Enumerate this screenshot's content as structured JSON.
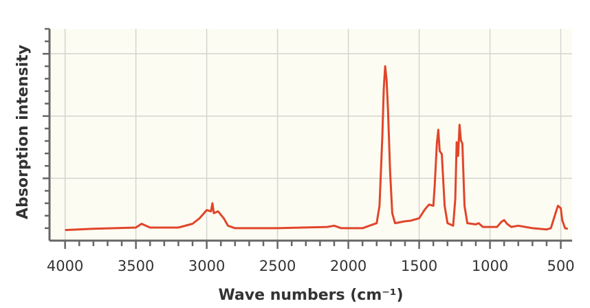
{
  "chart_data": {
    "type": "line",
    "x_label": "Wave numbers (cm⁻¹)",
    "y_label": "Absorption intensity",
    "x": [
      4000,
      3800,
      3500,
      3460,
      3400,
      3200,
      3100,
      3050,
      3000,
      2970,
      2960,
      2950,
      2920,
      2880,
      2850,
      2800,
      2500,
      2150,
      2100,
      2050,
      1900,
      1800,
      1780,
      1760,
      1750,
      1740,
      1730,
      1720,
      1705,
      1690,
      1670,
      1600,
      1560,
      1500,
      1460,
      1430,
      1400,
      1390,
      1375,
      1365,
      1355,
      1340,
      1320,
      1300,
      1260,
      1245,
      1235,
      1225,
      1215,
      1205,
      1195,
      1180,
      1160,
      1100,
      1080,
      1050,
      950,
      920,
      900,
      880,
      850,
      800,
      700,
      600,
      570,
      540,
      520,
      500,
      490,
      470,
      450
    ],
    "series": [
      {
        "name": "Absorption intensity",
        "color": "#e0452a",
        "values": [
          0.17,
          0.19,
          0.21,
          0.27,
          0.21,
          0.21,
          0.27,
          0.36,
          0.49,
          0.47,
          0.6,
          0.44,
          0.47,
          0.36,
          0.24,
          0.2,
          0.2,
          0.22,
          0.24,
          0.2,
          0.2,
          0.28,
          0.56,
          1.67,
          2.44,
          2.8,
          2.58,
          2.11,
          1.11,
          0.44,
          0.28,
          0.31,
          0.32,
          0.36,
          0.5,
          0.58,
          0.56,
          0.89,
          1.56,
          1.78,
          1.44,
          1.39,
          0.56,
          0.28,
          0.24,
          0.67,
          1.58,
          1.36,
          1.86,
          1.61,
          1.56,
          0.56,
          0.28,
          0.26,
          0.28,
          0.22,
          0.22,
          0.3,
          0.33,
          0.27,
          0.22,
          0.24,
          0.2,
          0.18,
          0.2,
          0.42,
          0.56,
          0.52,
          0.33,
          0.2,
          0.19
        ]
      }
    ],
    "xlim": [
      4110,
      420
    ],
    "xticks": [
      4000,
      3500,
      3000,
      2500,
      2000,
      1500,
      1000,
      500
    ],
    "xminorticks": [
      3900,
      3800,
      3700,
      3600,
      3400,
      3300,
      3200,
      3100,
      2900,
      2800,
      2700,
      2600,
      2400,
      2300,
      2200,
      2100,
      1900,
      1800,
      1700,
      1600,
      1400,
      1300,
      1200,
      1100,
      900,
      800,
      700,
      600
    ],
    "ylim": [
      0,
      3.4
    ],
    "yticks": [
      1,
      2,
      3
    ],
    "yminorticks": [
      0.2,
      0.4,
      0.6,
      0.8,
      1.2,
      1.4,
      1.6,
      1.8,
      2.2,
      2.4,
      2.6,
      2.8,
      3.2,
      3.4
    ],
    "grid": true
  }
}
